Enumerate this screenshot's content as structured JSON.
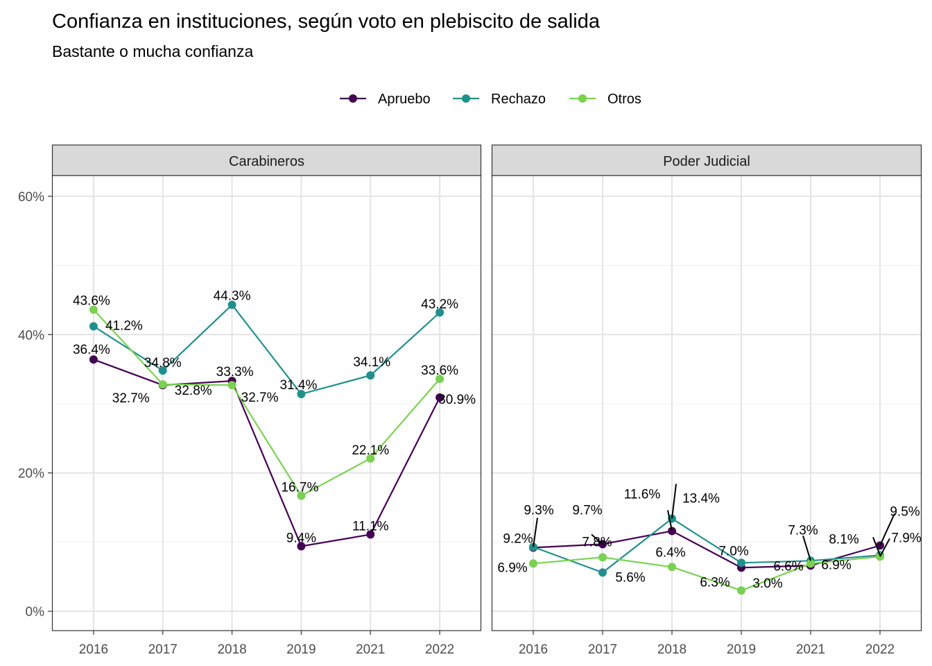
{
  "chart_data": {
    "type": "line",
    "title": "Confianza en instituciones, según voto en plebiscito de salida",
    "subtitle": "Bastante o mucha confianza",
    "xlabel": "",
    "ylabel": "",
    "categories": [
      "2016",
      "2017",
      "2018",
      "2019",
      "2021",
      "2022"
    ],
    "ylim": [
      -2.8,
      63
    ],
    "yticks": [
      0,
      20,
      40,
      60
    ],
    "ytick_labels": [
      "0%",
      "20%",
      "40%",
      "60%"
    ],
    "grid": true,
    "legend_position": "top",
    "series_meta": [
      {
        "name": "Apruebo",
        "color": "#440154"
      },
      {
        "name": "Rechazo",
        "color": "#21908C"
      },
      {
        "name": "Otros",
        "color": "#7AD151"
      }
    ],
    "panels": [
      {
        "name": "Carabineros",
        "series": [
          {
            "name": "Apruebo",
            "values": [
              36.4,
              32.7,
              33.3,
              9.4,
              11.1,
              30.9
            ],
            "labels": [
              "36.4%",
              "32.7%",
              "33.3%",
              "9.4%",
              "11.1%",
              "30.9%"
            ]
          },
          {
            "name": "Rechazo",
            "values": [
              41.2,
              34.8,
              44.3,
              31.4,
              34.1,
              43.2
            ],
            "labels": [
              "41.2%",
              "34.8%",
              "44.3%",
              "31.4%",
              "34.1%",
              "43.2%"
            ]
          },
          {
            "name": "Otros",
            "values": [
              43.6,
              32.8,
              32.7,
              16.7,
              22.1,
              33.6
            ],
            "labels": [
              "43.6%",
              "32.8%",
              "32.7%",
              "16.7%",
              "22.1%",
              "33.6%"
            ]
          }
        ]
      },
      {
        "name": "Poder Judicial",
        "series": [
          {
            "name": "Apruebo",
            "values": [
              9.2,
              9.7,
              11.6,
              6.3,
              6.6,
              9.5
            ],
            "labels": [
              "9.2%",
              "9.7%",
              "11.6%",
              "6.3%",
              "6.6%",
              "9.5%"
            ]
          },
          {
            "name": "Rechazo",
            "values": [
              9.3,
              5.6,
              13.4,
              7.0,
              7.3,
              8.1
            ],
            "labels": [
              "9.3%",
              "5.6%",
              "13.4%",
              "7.0%",
              "7.3%",
              "8.1%"
            ]
          },
          {
            "name": "Otros",
            "values": [
              6.9,
              7.8,
              6.4,
              3.0,
              6.9,
              7.9
            ],
            "labels": [
              "6.9%",
              "7.8%",
              "6.4%",
              "3.0%",
              "6.9%",
              "7.9%"
            ]
          }
        ]
      }
    ]
  }
}
